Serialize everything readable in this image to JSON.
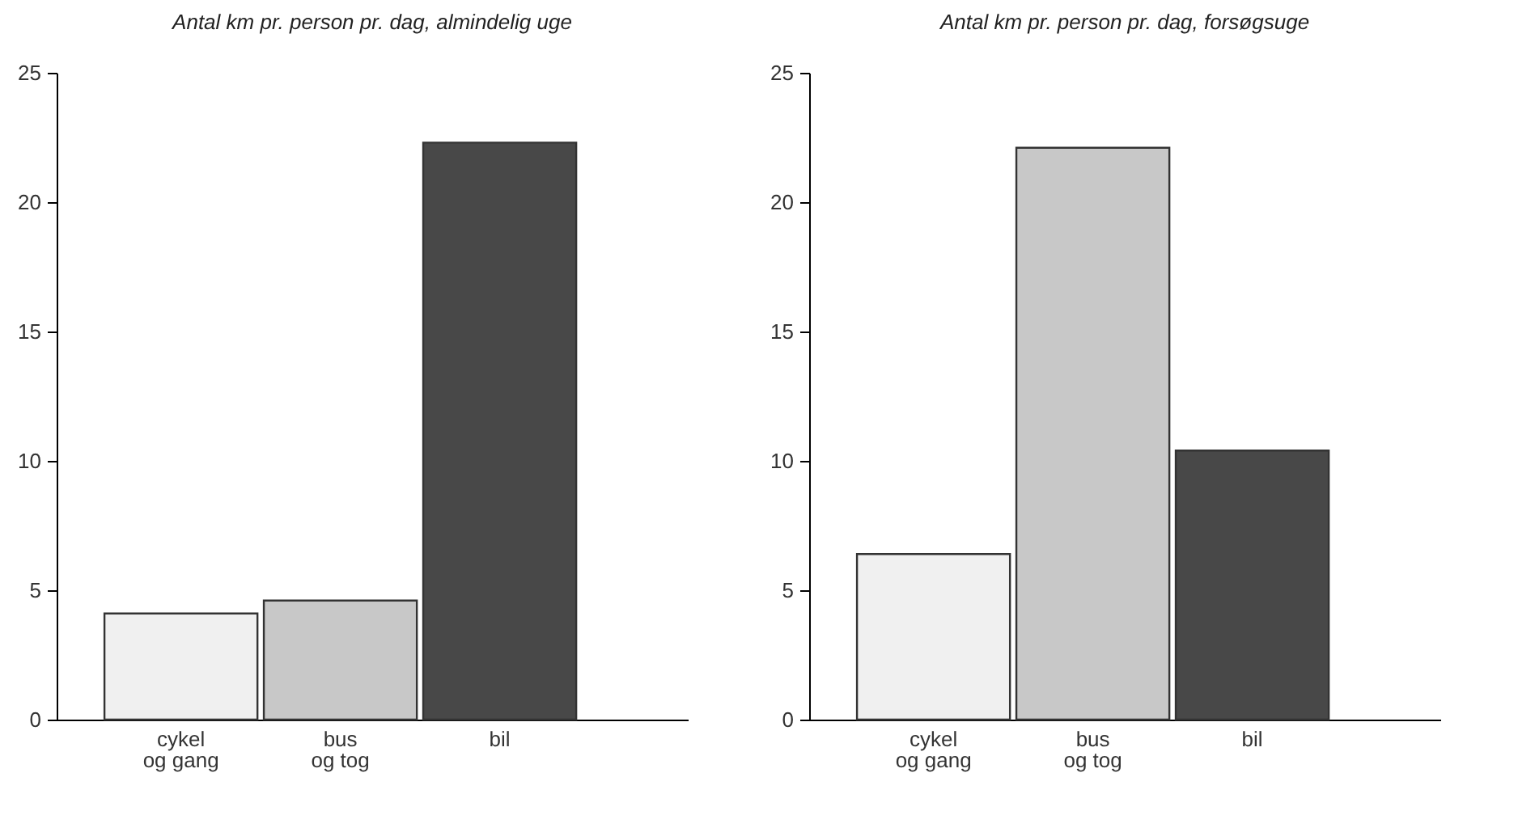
{
  "chart_data": [
    {
      "type": "bar",
      "title": "Antal km pr. person pr. dag, almindelig uge",
      "categories": [
        "cykel\nog gang",
        "bus\nog tog",
        "bil"
      ],
      "values": [
        4.1,
        4.6,
        22.3
      ],
      "colors": [
        "#f0f0f0",
        "#c8c8c8",
        "#484848"
      ],
      "ylim": [
        0,
        25
      ],
      "yticks": [
        0,
        5,
        10,
        15,
        20,
        25
      ],
      "grid": false
    },
    {
      "type": "bar",
      "title": "Antal km pr. person pr. dag, forsøgsuge",
      "categories": [
        "cykel\nog gang",
        "bus\nog tog",
        "bil"
      ],
      "values": [
        6.4,
        22.1,
        10.4
      ],
      "colors": [
        "#f0f0f0",
        "#c8c8c8",
        "#484848"
      ],
      "ylim": [
        0,
        25
      ],
      "yticks": [
        0,
        5,
        10,
        15,
        20,
        25
      ],
      "grid": false
    }
  ]
}
